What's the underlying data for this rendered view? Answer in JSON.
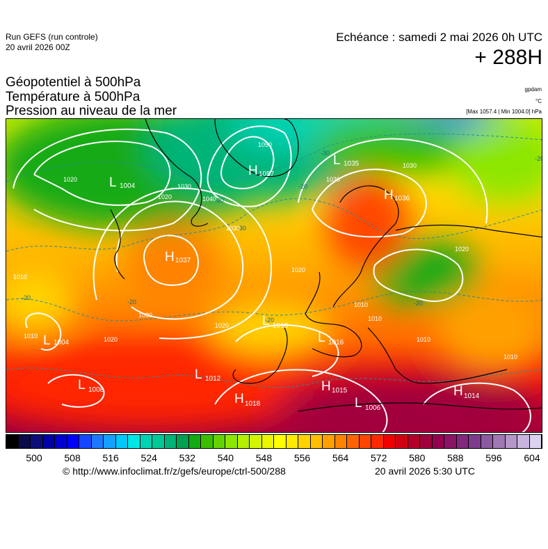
{
  "header": {
    "run_name": "Run GEFS (run controle)",
    "run_date": "20 avril 2026 00Z",
    "echeance": "Echéance : samedi 2 mai 2026 0h UTC",
    "lead_time": "+ 288H"
  },
  "parameters": {
    "line1": "Géopotentiel à 500hPa",
    "line2": "Température à 500hPa",
    "line3": "Pression au niveau de la mer"
  },
  "units": {
    "geopotential": "gpdam",
    "temperature": "°C",
    "pressure_range": "[Max 1057.4 | Min 1004.0] hPa"
  },
  "pressure_centers": [
    {
      "type": "L",
      "value": "1004"
    },
    {
      "type": "H",
      "value": "1057"
    },
    {
      "type": "L",
      "value": "1035"
    },
    {
      "type": "H",
      "value": "1036"
    },
    {
      "type": "H",
      "value": "1037"
    },
    {
      "type": "L",
      "value": "1004"
    },
    {
      "type": "L",
      "value": "1008"
    },
    {
      "type": "L",
      "value": "1012"
    },
    {
      "type": "L",
      "value": "1010"
    },
    {
      "type": "L",
      "value": "1016"
    },
    {
      "type": "H",
      "value": "1018"
    },
    {
      "type": "H",
      "value": "1015"
    },
    {
      "type": "L",
      "value": "1006"
    },
    {
      "type": "H",
      "value": "1014"
    }
  ],
  "isobar_labels": [
    "1020",
    "1030",
    "1040",
    "1050",
    "1030",
    "1030",
    "1020",
    "1030",
    "1020",
    "1020",
    "1030",
    "1020",
    "1010",
    "1010",
    "1010",
    "1010",
    "1020",
    "1010",
    "1010"
  ],
  "isotherm_labels": [
    "-30",
    "-20",
    "-30",
    "-20",
    "-20",
    "-20",
    "-20",
    "-20",
    "-20"
  ],
  "colorbar": {
    "colors": [
      "#000000",
      "#0a0a4a",
      "#0d0d7a",
      "#0000a8",
      "#0000d0",
      "#0000ff",
      "#1447ff",
      "#1e78ff",
      "#14a0ff",
      "#00c8ff",
      "#00e6e6",
      "#00d2b4",
      "#00c896",
      "#00b478",
      "#00a050",
      "#14aa14",
      "#3cbe00",
      "#64d200",
      "#8ce600",
      "#b4f000",
      "#d2f500",
      "#ebf500",
      "#ffff00",
      "#ffeb00",
      "#ffd200",
      "#ffbe00",
      "#ffa000",
      "#ff8200",
      "#ff6400",
      "#ff4600",
      "#ff2800",
      "#f00000",
      "#d20014",
      "#b40028",
      "#a0003c",
      "#960050",
      "#8c1464",
      "#82287d",
      "#7d3c8c",
      "#8c5aa0",
      "#a078b4",
      "#b496c8",
      "#c8b4dc",
      "#dcd2f0"
    ],
    "ticks": [
      "500",
      "508",
      "516",
      "524",
      "532",
      "540",
      "548",
      "556",
      "564",
      "572",
      "580",
      "588",
      "596",
      "604"
    ]
  },
  "footer": {
    "credit": "© http://www.infoclimat.fr/z/gefs/europe/ctrl-500/288",
    "issued": "20 avril 2026  5:30 UTC"
  }
}
